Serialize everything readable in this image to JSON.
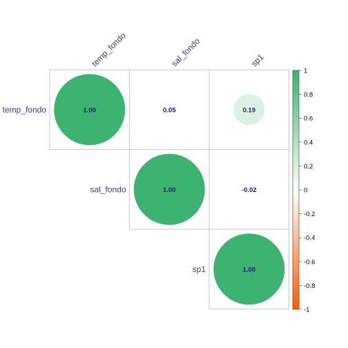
{
  "chart_data": {
    "type": "heatmap",
    "subtype": "correlogram-circles-upper",
    "variables": [
      "temp_fondo",
      "sal_fondo",
      "sp1"
    ],
    "cells": [
      {
        "row": "temp_fondo",
        "col": "temp_fondo",
        "value": 1.0,
        "label": "1.00"
      },
      {
        "row": "temp_fondo",
        "col": "sal_fondo",
        "value": 0.05,
        "label": "0.05"
      },
      {
        "row": "temp_fondo",
        "col": "sp1",
        "value": 0.19,
        "label": "0.19"
      },
      {
        "row": "sal_fondo",
        "col": "sal_fondo",
        "value": 1.0,
        "label": "1.00"
      },
      {
        "row": "sal_fondo",
        "col": "sp1",
        "value": -0.02,
        "label": "-0.02"
      },
      {
        "row": "sp1",
        "col": "sp1",
        "value": 1.0,
        "label": "1.00"
      }
    ],
    "colorbar": {
      "range": [
        -1,
        1
      ],
      "ticks": [
        "1",
        "0.8",
        "0.6",
        "0.4",
        "0.2",
        "0",
        "-0.2",
        "-0.4",
        "-0.6",
        "-0.8",
        "-1"
      ],
      "color_negative": "#ff5a00",
      "color_zero": "#ffffff",
      "color_positive": "#3cb371"
    },
    "grid": true,
    "legend_position": "right"
  }
}
